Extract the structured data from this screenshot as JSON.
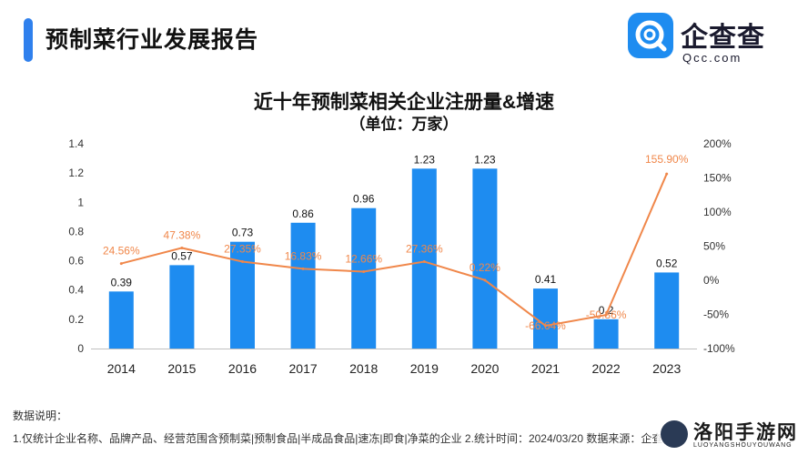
{
  "header": {
    "title": "预制菜行业发展报告"
  },
  "logo": {
    "name": "企查查",
    "domain": "Qcc.com"
  },
  "chart_data": {
    "type": "bar",
    "title": "近十年预制菜相关企业注册量&增速",
    "subtitle": "（单位：万家）",
    "categories": [
      "2014",
      "2015",
      "2016",
      "2017",
      "2018",
      "2019",
      "2020",
      "2021",
      "2022",
      "2023"
    ],
    "series": [
      {
        "values": [
          0.39,
          0.57,
          0.73,
          0.86,
          0.96,
          1.23,
          1.23,
          0.41,
          0.2,
          0.52
        ],
        "labels": [
          "0.39",
          "0.57",
          "0.73",
          "0.86",
          "0.96",
          "1.23",
          "1.23",
          "0.41",
          "0.2",
          "0.52"
        ],
        "color": "#1e8cf0",
        "axis": "left"
      },
      {
        "type": "line",
        "values": [
          24.56,
          47.38,
          27.35,
          16.83,
          12.66,
          27.36,
          0.22,
          -66.64,
          -50.86,
          155.9
        ],
        "labels": [
          "24.56%",
          "47.38%",
          "27.35%",
          "16.83%",
          "12.66%",
          "27.36%",
          "0.22%",
          "-66.64%",
          "-50.86%",
          "155.90%"
        ],
        "color": "#f0874a",
        "axis": "right"
      }
    ],
    "y_left": {
      "min": 0,
      "max": 1.4,
      "ticks": [
        "0",
        "0.2",
        "0.4",
        "0.6",
        "0.8",
        "1",
        "1.2",
        "1.4"
      ]
    },
    "y_right": {
      "min": -100,
      "max": 200,
      "ticks": [
        "-100%",
        "-50%",
        "0%",
        "50%",
        "100%",
        "150%",
        "200%"
      ]
    },
    "grid": false,
    "legend": "none"
  },
  "notes": {
    "heading": "数据说明：",
    "line": "1.仅统计企业名称、品牌产品、经营范围含预制菜|预制食品|半成品食品|速冻|即食|净菜的企业   2.统计时间：2024/03/20   数据来源：企查查"
  },
  "watermark": {
    "name": "洛阳手游网",
    "sub": "LUOYANGSHOUYOUWANG"
  }
}
